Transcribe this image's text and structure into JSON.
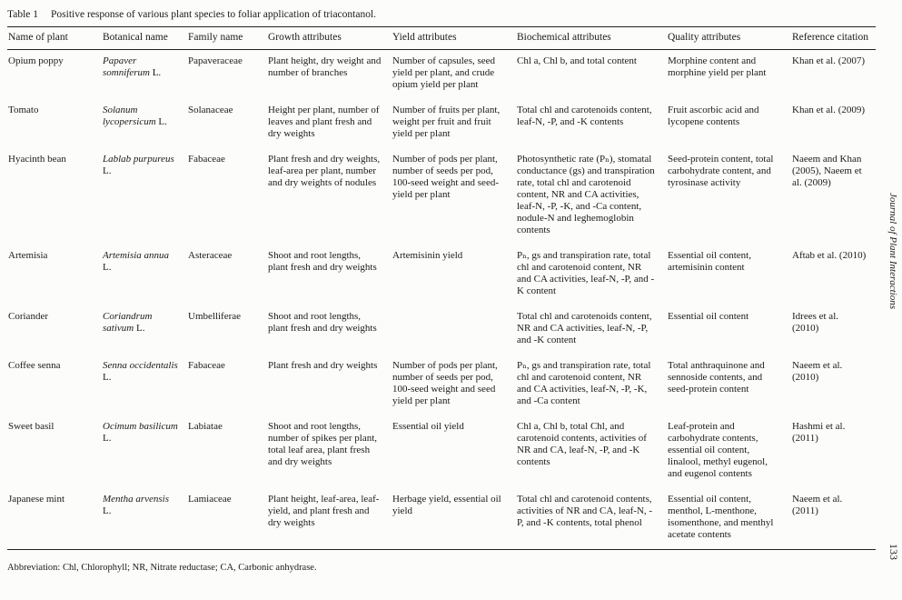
{
  "title": {
    "label": "Table 1",
    "caption": "Positive response of various plant species to foliar application of triacontanol."
  },
  "table": {
    "headers": [
      "Name of plant",
      "Botanical name",
      "Family name",
      "Growth attributes",
      "Yield attributes",
      "Biochemical attributes",
      "Quality attributes",
      "Reference citation"
    ],
    "rows": [
      {
        "plant": "Opium poppy",
        "botanical_italic": "Papaver somniferum",
        "botanical_suffix": "L.",
        "family": "Papaveraceae",
        "growth": "Plant height, dry weight and number of branches",
        "yield": "Number of capsules, seed yield per plant, and crude opium yield per plant",
        "biochemical": "Chl a, Chl b, and total content",
        "quality": "Morphine content and morphine yield per plant",
        "reference": "Khan et al. (2007)"
      },
      {
        "plant": "Tomato",
        "botanical_italic": "Solanum lycopersicum",
        "botanical_suffix": "L.",
        "family": "Solanaceae",
        "growth": "Height per plant, number of leaves and plant fresh and dry weights",
        "yield": "Number of fruits per plant, weight per fruit and fruit yield per plant",
        "biochemical": "Total chl and carotenoids content, leaf-N, -P, and -K contents",
        "quality": "Fruit ascorbic acid and lycopene contents",
        "reference": "Khan et al. (2009)"
      },
      {
        "plant": "Hyacinth bean",
        "botanical_italic": "Lablab purpureus",
        "botanical_suffix": "L.",
        "family": "Fabaceae",
        "growth": "Plant fresh and dry weights, leaf-area per plant, number and dry weights of nodules",
        "yield": "Number of pods per plant, number of seeds per pod, 100-seed weight and seed-yield per plant",
        "biochemical": "Photosynthetic rate (Pₙ), stomatal conductance (gs) and transpiration rate, total chl and carotenoid content, NR and CA activities, leaf-N, -P, -K, and -Ca content, nodule-N and leghemoglobin contents",
        "quality": "Seed-protein content, total carbohydrate content, and tyrosinase activity",
        "reference": "Naeem and Khan (2005), Naeem et al. (2009)"
      },
      {
        "plant": "Artemisia",
        "botanical_italic": "Artemisia annua",
        "botanical_suffix": "L.",
        "family": "Asteraceae",
        "growth": "Shoot and root lengths, plant fresh and dry weights",
        "yield": "Artemisinin yield",
        "biochemical": "Pₙ, gs and transpiration rate, total chl and carotenoid content, NR and CA activities, leaf-N, -P, and -K content",
        "quality": "Essential oil content, artemisinin content",
        "reference": "Aftab et al. (2010)"
      },
      {
        "plant": "Coriander",
        "botanical_italic": "Coriandrum sativum",
        "botanical_suffix": "L.",
        "family": "Umbelliferae",
        "growth": "Shoot and root lengths, plant fresh and dry weights",
        "yield": "",
        "biochemical": "Total chl and carotenoids content, NR and CA activities, leaf-N, -P, and -K content",
        "quality": "Essential oil content",
        "reference": "Idrees et al. (2010)"
      },
      {
        "plant": "Coffee senna",
        "botanical_italic": "Senna occidentalis",
        "botanical_suffix": "L.",
        "family": "Fabaceae",
        "growth": "Plant fresh and dry weights",
        "yield": "Number of pods per plant, number of seeds per pod, 100-seed weight and seed yield per plant",
        "biochemical": "Pₙ, gs and transpiration rate, total chl and carotenoid content, NR and CA activities, leaf-N, -P, -K, and -Ca content",
        "quality": "Total anthraquinone and sennoside contents, and seed-protein content",
        "reference": "Naeem et al. (2010)"
      },
      {
        "plant": "Sweet basil",
        "botanical_italic": "Ocimum basilicum",
        "botanical_suffix": "L.",
        "family": "Labiatae",
        "growth": "Shoot and root lengths, number of spikes per plant, total leaf area, plant fresh and dry weights",
        "yield": "Essential oil yield",
        "biochemical": "Chl a, Chl b, total Chl, and carotenoid contents, activities of NR and CA, leaf-N, -P, and -K contents",
        "quality": "Leaf-protein and carbohydrate contents, essential oil content, linalool, methyl eugenol, and eugenol contents",
        "reference": "Hashmi et al. (2011)"
      },
      {
        "plant": "Japanese mint",
        "botanical_italic": "Mentha arvensis",
        "botanical_suffix": "L.",
        "family": "Lamiaceae",
        "growth": "Plant height, leaf-area, leaf-yield, and plant fresh and dry weights",
        "yield": "Herbage yield, essential oil yield",
        "biochemical": "Total chl and carotenoid contents, activities of NR and CA, leaf-N, -P, and -K contents, total phenol",
        "quality": "Essential oil content, menthol, L-menthone, isomenthone, and menthyl acetate contents",
        "reference": "Naeem et al. (2011)"
      }
    ]
  },
  "footnote": "Abbreviation: Chl, Chlorophyll; NR, Nitrate reductase; CA, Carbonic anhydrase.",
  "side": {
    "journal_title": "Journal of Plant Interactions",
    "page_number": "133"
  }
}
